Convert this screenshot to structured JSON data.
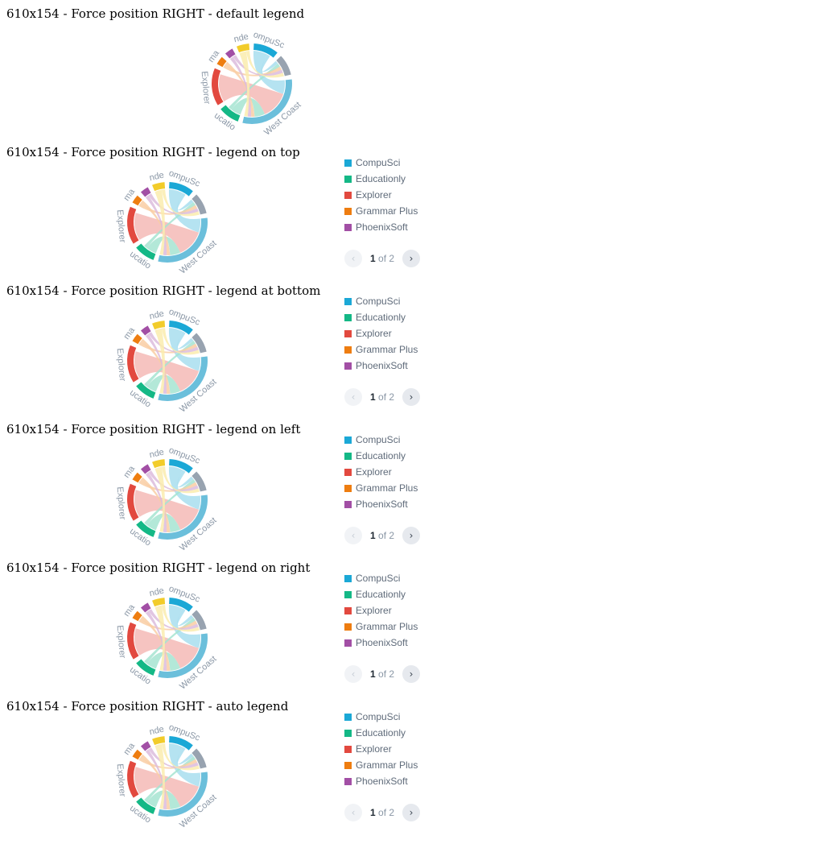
{
  "sections": [
    {
      "title": "610x154 - Force position RIGHT - default legend",
      "has_legend": false
    },
    {
      "title": "610x154 - Force position RIGHT - legend on top",
      "has_legend": true
    },
    {
      "title": "610x154 - Force position RIGHT - legend at bottom",
      "has_legend": true
    },
    {
      "title": "610x154 - Force position RIGHT - legend on left",
      "has_legend": true
    },
    {
      "title": "610x154 - Force position RIGHT - legend on right",
      "has_legend": true
    },
    {
      "title": "610x154 - Force position RIGHT - auto legend",
      "has_legend": true
    }
  ],
  "legend": {
    "items": [
      {
        "label": "CompuSci",
        "color": "#1ba8d6"
      },
      {
        "label": "Educationly",
        "color": "#14b886"
      },
      {
        "label": "Explorer",
        "color": "#e2493f"
      },
      {
        "label": "Grammar Plus",
        "color": "#ee7d10"
      },
      {
        "label": "PhoenixSoft",
        "color": "#a24fa5"
      }
    ],
    "pager": {
      "current": "1",
      "of_label": "of 2",
      "prev_icon": "chevron-left",
      "next_icon": "chevron-right"
    }
  },
  "chart_data": {
    "type": "chord",
    "nodes": [
      {
        "name": "CompuSci",
        "label": "ompuSc",
        "color": "#1ba8d6"
      },
      {
        "name": "Gray",
        "label": "",
        "color": "#98a3b0"
      },
      {
        "name": "West Coast",
        "label": "West Coast",
        "color": "#6bbfdb"
      },
      {
        "name": "Educationly",
        "label": "ucatio",
        "color": "#14b886"
      },
      {
        "name": "Explorer",
        "label": "Explorer",
        "color": "#e2493f"
      },
      {
        "name": "Grammar Plus",
        "label": "ma",
        "color": "#ee7d10"
      },
      {
        "name": "PhoenixSoft",
        "label": "",
        "color": "#a24fa5"
      },
      {
        "name": "Yellow",
        "label": "nde",
        "color": "#f2cc2a"
      }
    ],
    "node_sizes": [
      12,
      10,
      36,
      10,
      18,
      4,
      4,
      6
    ],
    "links": [
      {
        "source": "CompuSci",
        "target": "West Coast",
        "value": 8
      },
      {
        "source": "CompuSci",
        "target": "Gray",
        "value": 2
      },
      {
        "source": "Explorer",
        "target": "West Coast",
        "value": 16
      },
      {
        "source": "Educationly",
        "target": "West Coast",
        "value": 6
      },
      {
        "source": "Educationly",
        "target": "Gray",
        "value": 2
      },
      {
        "source": "Grammar Plus",
        "target": "Gray",
        "value": 2
      },
      {
        "source": "Grammar Plus",
        "target": "West Coast",
        "value": 2
      },
      {
        "source": "PhoenixSoft",
        "target": "West Coast",
        "value": 2
      },
      {
        "source": "PhoenixSoft",
        "target": "Gray",
        "value": 2
      },
      {
        "source": "Yellow",
        "target": "West Coast",
        "value": 4
      },
      {
        "source": "Yellow",
        "target": "Gray",
        "value": 2
      }
    ]
  }
}
